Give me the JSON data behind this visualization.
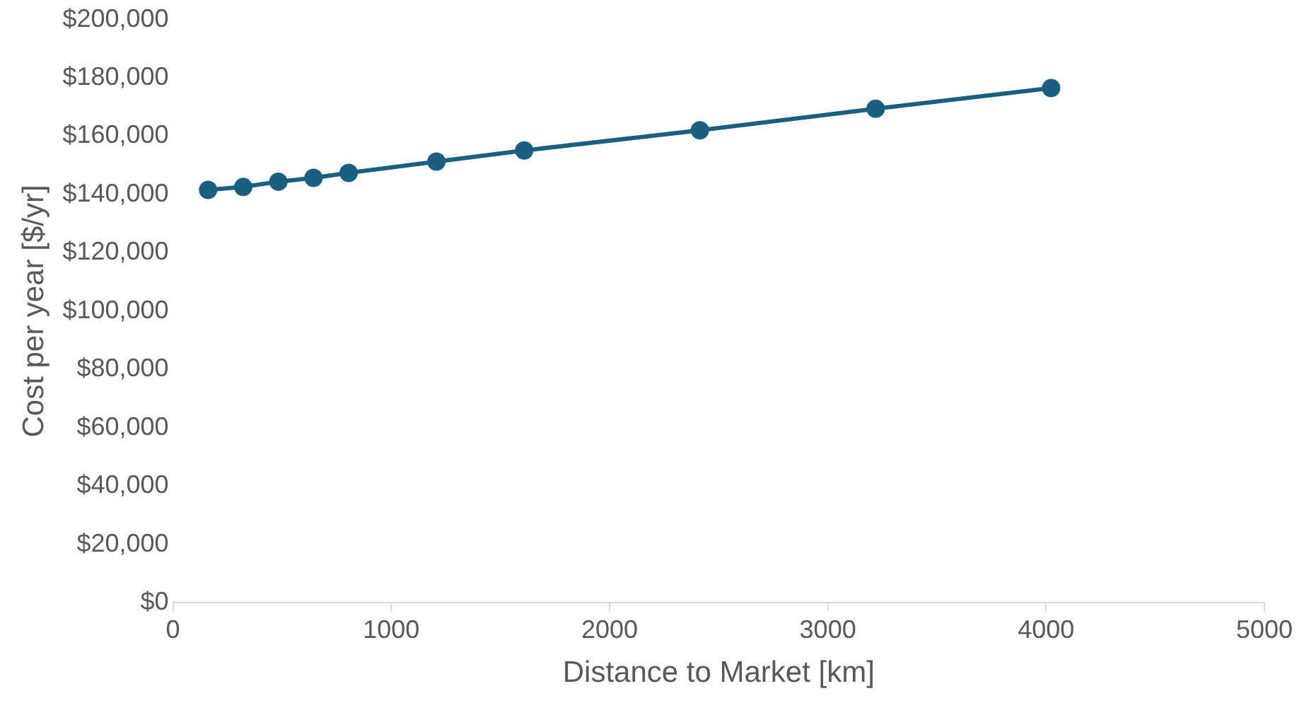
{
  "chart_data": {
    "type": "scatter",
    "xlabel": "Distance to Market [km]",
    "ylabel": "Cost per year [$/yr]",
    "x": [
      161,
      322,
      483,
      644,
      805,
      1207,
      1609,
      2414,
      3219,
      4023
    ],
    "series": [
      {
        "color": "#1b5f80",
        "type": "line",
        "values": [
          141600,
          142600,
          144400,
          145700,
          147400,
          151300,
          155100,
          162000,
          169400,
          176500
        ]
      }
    ],
    "xlim": [
      0,
      5000
    ],
    "xticks": [
      0,
      1000,
      2000,
      3000,
      4000,
      5000
    ],
    "ylim": [
      0,
      200000
    ],
    "yticks": [
      {
        "value": 0,
        "label": "$0"
      },
      {
        "value": 20000,
        "label": "$20,000"
      },
      {
        "value": 40000,
        "label": "$40,000"
      },
      {
        "value": 60000,
        "label": "$60,000"
      },
      {
        "value": 80000,
        "label": "$80,000"
      },
      {
        "value": 100000,
        "label": "$100,000"
      },
      {
        "value": 120000,
        "label": "$120,000"
      },
      {
        "value": 140000,
        "label": "$140,000"
      },
      {
        "value": 160000,
        "label": "$160,000"
      },
      {
        "value": 180000,
        "label": "$180,000"
      },
      {
        "value": 200000,
        "label": "$200,000"
      }
    ],
    "grid": false,
    "legend": false,
    "marker": "circle",
    "line_style": "solid"
  }
}
